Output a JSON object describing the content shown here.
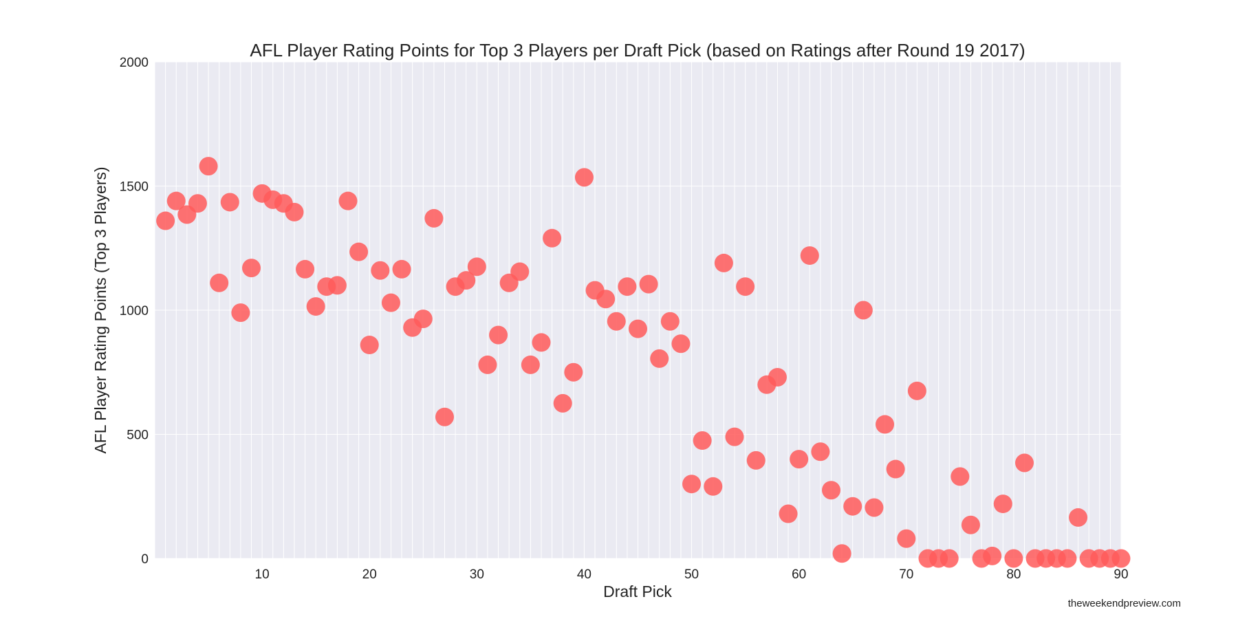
{
  "chart_data": {
    "type": "scatter",
    "title": "AFL Player Rating Points for Top 3 Players per Draft Pick (based on Ratings after Round 19 2017)",
    "xlabel": "Draft Pick",
    "ylabel": "AFL Player Rating Points (Top 3 Players)",
    "xlim": [
      0,
      90
    ],
    "ylim": [
      0,
      2000
    ],
    "xticks": [
      10,
      20,
      30,
      40,
      50,
      60,
      70,
      80,
      90
    ],
    "yticks": [
      0,
      500,
      1000,
      1500,
      2000
    ],
    "grid": true,
    "marker_color": "#ff5a5a",
    "background_color": "#eaeaf2",
    "points": [
      [
        1,
        1360
      ],
      [
        2,
        1440
      ],
      [
        3,
        1385
      ],
      [
        4,
        1430
      ],
      [
        5,
        1580
      ],
      [
        6,
        1110
      ],
      [
        7,
        1435
      ],
      [
        8,
        990
      ],
      [
        9,
        1170
      ],
      [
        10,
        1470
      ],
      [
        11,
        1445
      ],
      [
        12,
        1430
      ],
      [
        13,
        1395
      ],
      [
        14,
        1165
      ],
      [
        15,
        1015
      ],
      [
        16,
        1095
      ],
      [
        17,
        1100
      ],
      [
        18,
        1440
      ],
      [
        19,
        1235
      ],
      [
        20,
        860
      ],
      [
        21,
        1160
      ],
      [
        22,
        1030
      ],
      [
        23,
        1165
      ],
      [
        24,
        930
      ],
      [
        25,
        965
      ],
      [
        26,
        1370
      ],
      [
        27,
        570
      ],
      [
        28,
        1095
      ],
      [
        29,
        1120
      ],
      [
        30,
        1175
      ],
      [
        31,
        780
      ],
      [
        32,
        900
      ],
      [
        33,
        1110
      ],
      [
        34,
        1155
      ],
      [
        35,
        780
      ],
      [
        36,
        870
      ],
      [
        37,
        1290
      ],
      [
        38,
        625
      ],
      [
        39,
        750
      ],
      [
        40,
        1535
      ],
      [
        41,
        1080
      ],
      [
        42,
        1045
      ],
      [
        43,
        955
      ],
      [
        44,
        1095
      ],
      [
        45,
        925
      ],
      [
        46,
        1105
      ],
      [
        47,
        805
      ],
      [
        48,
        955
      ],
      [
        49,
        865
      ],
      [
        50,
        300
      ],
      [
        51,
        475
      ],
      [
        52,
        290
      ],
      [
        53,
        1190
      ],
      [
        54,
        490
      ],
      [
        55,
        1095
      ],
      [
        56,
        395
      ],
      [
        57,
        700
      ],
      [
        58,
        730
      ],
      [
        59,
        180
      ],
      [
        60,
        400
      ],
      [
        61,
        1220
      ],
      [
        62,
        430
      ],
      [
        63,
        275
      ],
      [
        64,
        20
      ],
      [
        65,
        210
      ],
      [
        66,
        1000
      ],
      [
        67,
        205
      ],
      [
        68,
        540
      ],
      [
        69,
        360
      ],
      [
        70,
        80
      ],
      [
        71,
        675
      ],
      [
        72,
        0
      ],
      [
        73,
        0
      ],
      [
        74,
        0
      ],
      [
        75,
        330
      ],
      [
        76,
        135
      ],
      [
        77,
        0
      ],
      [
        78,
        10
      ],
      [
        79,
        220
      ],
      [
        80,
        0
      ],
      [
        81,
        385
      ],
      [
        82,
        0
      ],
      [
        83,
        0
      ],
      [
        84,
        0
      ],
      [
        85,
        0
      ],
      [
        86,
        165
      ],
      [
        87,
        0
      ],
      [
        88,
        0
      ],
      [
        89,
        0
      ],
      [
        90,
        0
      ]
    ]
  },
  "credit": "theweekendpreview.com"
}
